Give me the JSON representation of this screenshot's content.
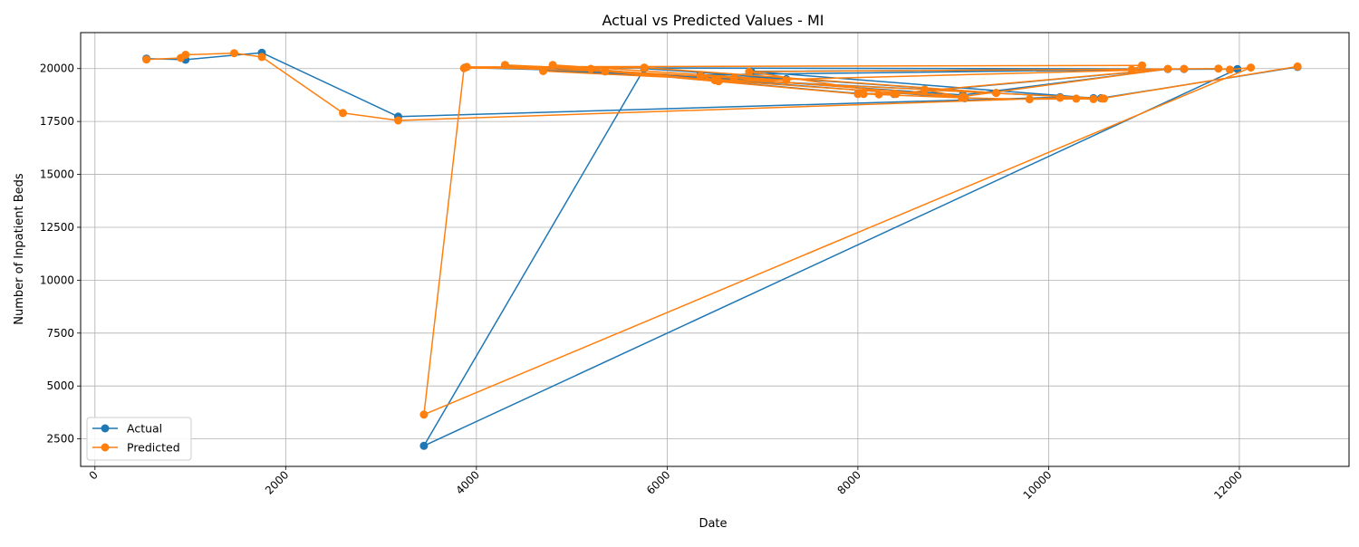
{
  "chart_data": {
    "type": "line",
    "title": "Actual vs Predicted Values - MI",
    "xlabel": "Date",
    "ylabel": "Number of Inpatient Beds",
    "xlim": [
      -150,
      13150
    ],
    "ylim": [
      1200,
      21700
    ],
    "x_ticks": [
      0,
      2000,
      4000,
      6000,
      8000,
      10000,
      12000
    ],
    "x_tick_labels": [
      "0",
      "2000",
      "4000",
      "6000",
      "8000",
      "10000",
      "12000"
    ],
    "y_ticks": [
      2500,
      5000,
      7500,
      10000,
      12500,
      15000,
      17500,
      20000
    ],
    "y_tick_labels": [
      "2500",
      "5000",
      "7500",
      "10000",
      "12500",
      "15000",
      "17500",
      "20000"
    ],
    "grid": true,
    "legend_position": "lower-left",
    "series": [
      {
        "name": "Actual",
        "color": "#1f77b4",
        "x": [
          540,
          950,
          1750,
          3180,
          10120,
          10470,
          6880,
          11980,
          3450,
          5760,
          9450,
          4700,
          7250,
          6350,
          11420,
          3880,
          5350,
          8000,
          8380,
          11250,
          9100,
          6700,
          4300,
          5200,
          6500,
          9120,
          8700,
          10550,
          12610
        ],
        "y": [
          20470,
          20420,
          20750,
          17730,
          18650,
          18600,
          19870,
          19980,
          2170,
          20000,
          18850,
          19920,
          19500,
          19700,
          19980,
          20050,
          19870,
          18820,
          18800,
          19980,
          18750,
          19500,
          20150,
          19980,
          19500,
          18600,
          19000,
          18600,
          20080
        ]
      },
      {
        "name": "Predicted",
        "color": "#ff7f0e",
        "x": [
          540,
          900,
          950,
          1460,
          1750,
          2600,
          3180,
          10120,
          10290,
          10470,
          10580,
          9800,
          9090,
          8060,
          8220,
          8400,
          6860,
          11780,
          11900,
          12120,
          3450,
          3870,
          5760,
          9450,
          4700,
          4800,
          7250,
          6350,
          6540,
          11420,
          10870,
          10980,
          3900,
          5350,
          8000,
          8380,
          11250,
          9100,
          6700,
          4300,
          5200,
          6500,
          9120,
          8700,
          10560,
          12610
        ],
        "y": [
          20430,
          20500,
          20650,
          20730,
          20550,
          17900,
          17550,
          18620,
          18580,
          18560,
          18580,
          18550,
          18620,
          18800,
          18780,
          18800,
          19850,
          20000,
          19950,
          20050,
          3650,
          20020,
          20050,
          18850,
          19880,
          20170,
          19450,
          19650,
          19400,
          19990,
          19950,
          20150,
          20080,
          19870,
          18800,
          18820,
          19990,
          18680,
          19550,
          20170,
          19990,
          19450,
          18640,
          19000,
          18590,
          20100
        ]
      }
    ]
  }
}
